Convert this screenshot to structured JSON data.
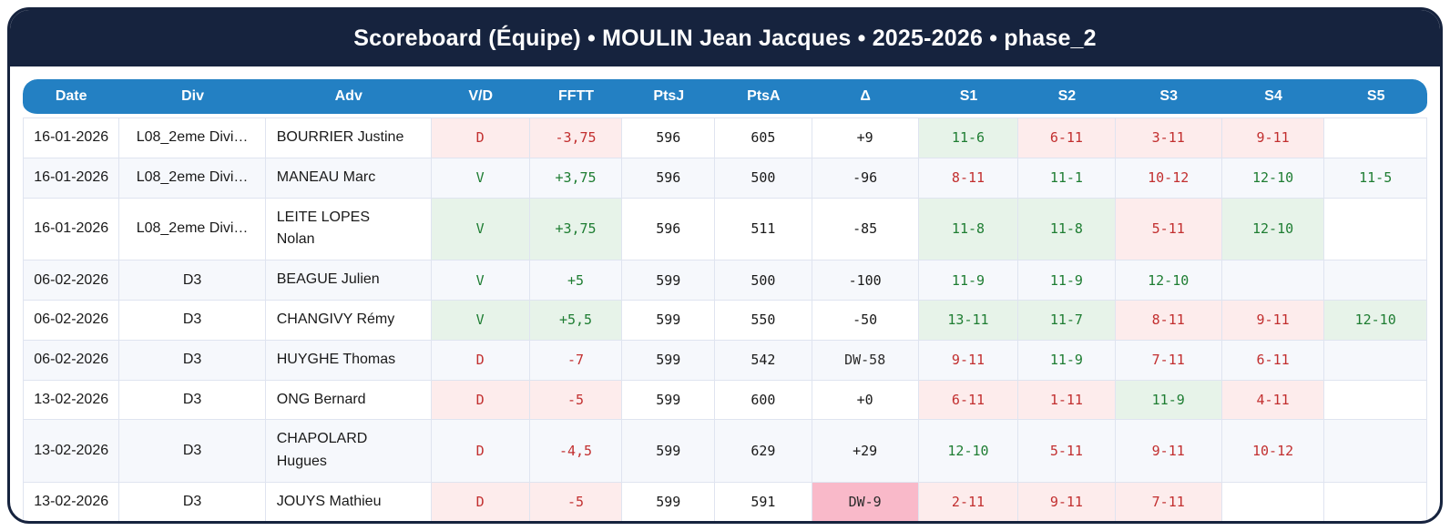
{
  "title": "Scoreboard (Équipe) • MOULIN Jean Jacques • 2025-2026 • phase_2",
  "colors": {
    "frame_navy": "#16233e",
    "header_blue": "#2380c3",
    "win_text": "#1e7d32",
    "win_bg": "#e7f3e9",
    "loss_text": "#c22f2f",
    "loss_bg": "#fdecec",
    "dw_bg": "#f9b9c9",
    "stripe_bg": "#f6f8fc"
  },
  "table": {
    "columns": [
      "Date",
      "Div",
      "Adv",
      "V/D",
      "FFTT",
      "PtsJ",
      "PtsA",
      "Δ",
      "S1",
      "S2",
      "S3",
      "S4",
      "S5"
    ],
    "rows": [
      {
        "date": "16-01-2026",
        "div": "L08_2eme Divi…",
        "adv": "BOURRIER Justine",
        "vd": {
          "text": "D",
          "result": "loss"
        },
        "fftt": {
          "text": "-3,75",
          "result": "loss"
        },
        "ptsj": "596",
        "ptsa": "605",
        "delta": {
          "text": "+9",
          "dw": false
        },
        "sets": [
          {
            "text": "11-6",
            "result": "win"
          },
          {
            "text": "6-11",
            "result": "loss"
          },
          {
            "text": "3-11",
            "result": "loss"
          },
          {
            "text": "9-11",
            "result": "loss"
          },
          {
            "text": "",
            "result": "none"
          }
        ]
      },
      {
        "date": "16-01-2026",
        "div": "L08_2eme Divi…",
        "adv": "MANEAU Marc",
        "vd": {
          "text": "V",
          "result": "win"
        },
        "fftt": {
          "text": "+3,75",
          "result": "win"
        },
        "ptsj": "596",
        "ptsa": "500",
        "delta": {
          "text": "-96",
          "dw": false
        },
        "sets": [
          {
            "text": "8-11",
            "result": "loss"
          },
          {
            "text": "11-1",
            "result": "win"
          },
          {
            "text": "10-12",
            "result": "loss"
          },
          {
            "text": "12-10",
            "result": "win"
          },
          {
            "text": "11-5",
            "result": "win"
          }
        ]
      },
      {
        "date": "16-01-2026",
        "div": "L08_2eme Divi…",
        "adv": "LEITE LOPES\nNolan",
        "vd": {
          "text": "V",
          "result": "win"
        },
        "fftt": {
          "text": "+3,75",
          "result": "win"
        },
        "ptsj": "596",
        "ptsa": "511",
        "delta": {
          "text": "-85",
          "dw": false
        },
        "sets": [
          {
            "text": "11-8",
            "result": "win"
          },
          {
            "text": "11-8",
            "result": "win"
          },
          {
            "text": "5-11",
            "result": "loss"
          },
          {
            "text": "12-10",
            "result": "win"
          },
          {
            "text": "",
            "result": "none"
          }
        ]
      },
      {
        "date": "06-02-2026",
        "div": "D3",
        "adv": "BEAGUE Julien",
        "vd": {
          "text": "V",
          "result": "win"
        },
        "fftt": {
          "text": "+5",
          "result": "win"
        },
        "ptsj": "599",
        "ptsa": "500",
        "delta": {
          "text": "-100",
          "dw": false
        },
        "sets": [
          {
            "text": "11-9",
            "result": "win"
          },
          {
            "text": "11-9",
            "result": "win"
          },
          {
            "text": "12-10",
            "result": "win"
          },
          {
            "text": "",
            "result": "none"
          },
          {
            "text": "",
            "result": "none"
          }
        ]
      },
      {
        "date": "06-02-2026",
        "div": "D3",
        "adv": "CHANGIVY Rémy",
        "vd": {
          "text": "V",
          "result": "win"
        },
        "fftt": {
          "text": "+5,5",
          "result": "win"
        },
        "ptsj": "599",
        "ptsa": "550",
        "delta": {
          "text": "-50",
          "dw": false
        },
        "sets": [
          {
            "text": "13-11",
            "result": "win"
          },
          {
            "text": "11-7",
            "result": "win"
          },
          {
            "text": "8-11",
            "result": "loss"
          },
          {
            "text": "9-11",
            "result": "loss"
          },
          {
            "text": "12-10",
            "result": "win"
          }
        ]
      },
      {
        "date": "06-02-2026",
        "div": "D3",
        "adv": "HUYGHE Thomas",
        "vd": {
          "text": "D",
          "result": "loss"
        },
        "fftt": {
          "text": "-7",
          "result": "loss"
        },
        "ptsj": "599",
        "ptsa": "542",
        "delta": {
          "text": "DW-58",
          "dw": true
        },
        "sets": [
          {
            "text": "9-11",
            "result": "loss"
          },
          {
            "text": "11-9",
            "result": "win"
          },
          {
            "text": "7-11",
            "result": "loss"
          },
          {
            "text": "6-11",
            "result": "loss"
          },
          {
            "text": "",
            "result": "none"
          }
        ]
      },
      {
        "date": "13-02-2026",
        "div": "D3",
        "adv": "ONG Bernard",
        "vd": {
          "text": "D",
          "result": "loss"
        },
        "fftt": {
          "text": "-5",
          "result": "loss"
        },
        "ptsj": "599",
        "ptsa": "600",
        "delta": {
          "text": "+0",
          "dw": false
        },
        "sets": [
          {
            "text": "6-11",
            "result": "loss"
          },
          {
            "text": "1-11",
            "result": "loss"
          },
          {
            "text": "11-9",
            "result": "win"
          },
          {
            "text": "4-11",
            "result": "loss"
          },
          {
            "text": "",
            "result": "none"
          }
        ]
      },
      {
        "date": "13-02-2026",
        "div": "D3",
        "adv": "CHAPOLARD\nHugues",
        "vd": {
          "text": "D",
          "result": "loss"
        },
        "fftt": {
          "text": "-4,5",
          "result": "loss"
        },
        "ptsj": "599",
        "ptsa": "629",
        "delta": {
          "text": "+29",
          "dw": false
        },
        "sets": [
          {
            "text": "12-10",
            "result": "win"
          },
          {
            "text": "5-11",
            "result": "loss"
          },
          {
            "text": "9-11",
            "result": "loss"
          },
          {
            "text": "10-12",
            "result": "loss"
          },
          {
            "text": "",
            "result": "none"
          }
        ]
      },
      {
        "date": "13-02-2026",
        "div": "D3",
        "adv": "JOUYS Mathieu",
        "vd": {
          "text": "D",
          "result": "loss"
        },
        "fftt": {
          "text": "-5",
          "result": "loss"
        },
        "ptsj": "599",
        "ptsa": "591",
        "delta": {
          "text": "DW-9",
          "dw": true
        },
        "sets": [
          {
            "text": "2-11",
            "result": "loss"
          },
          {
            "text": "9-11",
            "result": "loss"
          },
          {
            "text": "7-11",
            "result": "loss"
          },
          {
            "text": "",
            "result": "none"
          },
          {
            "text": "",
            "result": "none"
          }
        ]
      }
    ]
  }
}
